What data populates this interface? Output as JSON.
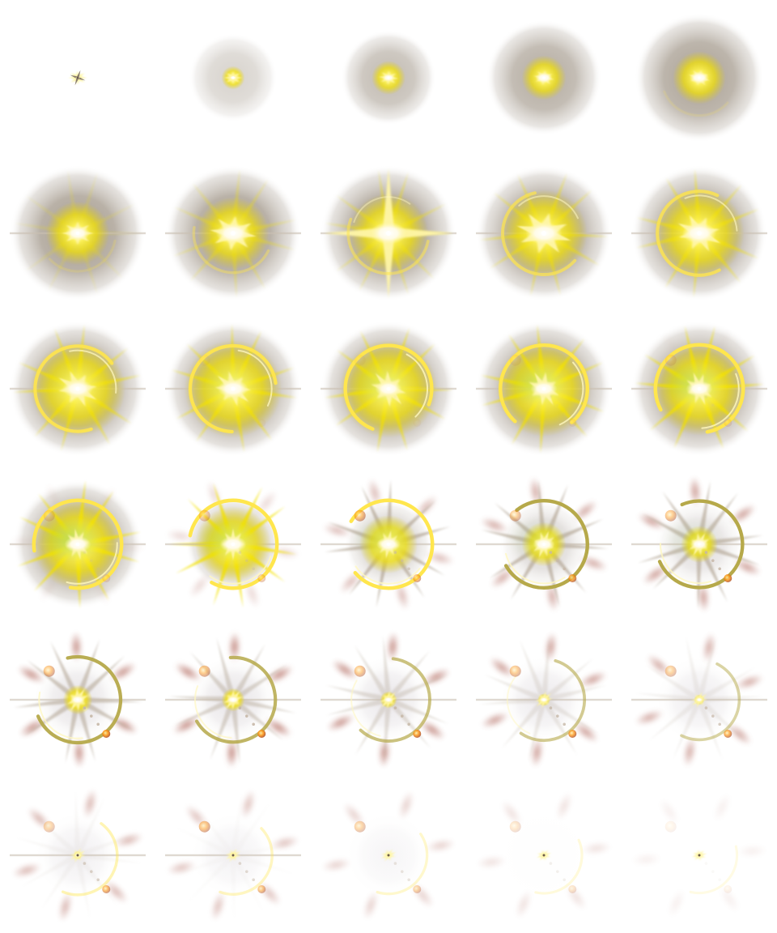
{
  "sprite_sheet": {
    "description_visible_text": "",
    "columns": 5,
    "rows": 6,
    "frame_count": 30,
    "colors": {
      "background": "#ffffff",
      "halo": "#8a7d6c",
      "glow": "#f4e300",
      "core": "#fffbe6",
      "ring": "#ffe64d",
      "shard": "#fff6a8",
      "green_mist": "#7fc24a",
      "red_smoke": "#a8564a",
      "ember": "#ff9a1a",
      "pale_white": "#f3f1f4"
    },
    "frames": [
      {
        "halo": 0.0,
        "glow": 0.05,
        "core": 0.04,
        "star": 0.08,
        "ring": 0.0,
        "rays": 0.0,
        "smoke": 0.0,
        "green": 0.0,
        "ember": 0.0,
        "rot": 0
      },
      {
        "halo": 0.45,
        "glow": 0.22,
        "core": 0.06,
        "star": 0.08,
        "ring": 0.0,
        "rays": 0.0,
        "smoke": 0.0,
        "green": 0.0,
        "ember": 0.0,
        "rot": 0
      },
      {
        "halo": 0.7,
        "glow": 0.32,
        "core": 0.1,
        "star": 0.1,
        "ring": 0.0,
        "rays": 0.0,
        "smoke": 0.0,
        "green": 0.0,
        "ember": 0.0,
        "rot": 10
      },
      {
        "halo": 0.85,
        "glow": 0.42,
        "core": 0.14,
        "star": 0.12,
        "ring": 0.0,
        "rays": 0.0,
        "smoke": 0.0,
        "green": 0.0,
        "ember": 0.0,
        "rot": 20
      },
      {
        "halo": 0.95,
        "glow": 0.5,
        "core": 0.16,
        "star": 0.14,
        "ring": 0.05,
        "rays": 0.0,
        "smoke": 0.0,
        "green": 0.0,
        "ember": 0.0,
        "rot": 30
      },
      {
        "halo": 1.0,
        "glow": 0.6,
        "core": 0.2,
        "star": 0.3,
        "ring": 0.1,
        "rays": 0.2,
        "smoke": 0.0,
        "green": 0.0,
        "ember": 0.0,
        "rot": 0
      },
      {
        "halo": 1.0,
        "glow": 0.68,
        "core": 0.28,
        "star": 0.55,
        "ring": 0.3,
        "rays": 0.4,
        "smoke": 0.0,
        "green": 0.0,
        "ember": 0.0,
        "rot": 15
      },
      {
        "halo": 1.0,
        "glow": 0.75,
        "core": 0.3,
        "star": 1.0,
        "ring": 0.45,
        "rays": 0.5,
        "smoke": 0.0,
        "green": 0.0,
        "ember": 0.0,
        "rot": 0
      },
      {
        "halo": 1.0,
        "glow": 0.82,
        "core": 0.3,
        "star": 0.7,
        "ring": 0.6,
        "rays": 0.6,
        "smoke": 0.0,
        "green": 0.0,
        "ember": 0.0,
        "rot": 30
      },
      {
        "halo": 1.0,
        "glow": 0.85,
        "core": 0.28,
        "star": 0.55,
        "ring": 0.7,
        "rays": 0.7,
        "smoke": 0.0,
        "green": 0.0,
        "ember": 0.0,
        "rot": 50
      },
      {
        "halo": 1.0,
        "glow": 0.9,
        "core": 0.25,
        "star": 0.5,
        "ring": 0.8,
        "rays": 0.8,
        "smoke": 0.0,
        "green": 0.1,
        "ember": 0.0,
        "rot": 60
      },
      {
        "halo": 1.0,
        "glow": 0.92,
        "core": 0.25,
        "star": 0.45,
        "ring": 0.85,
        "rays": 0.85,
        "smoke": 0.0,
        "green": 0.2,
        "ember": 0.05,
        "rot": 80
      },
      {
        "halo": 1.0,
        "glow": 0.92,
        "core": 0.22,
        "star": 0.45,
        "ring": 0.9,
        "rays": 0.9,
        "smoke": 0.0,
        "green": 0.3,
        "ember": 0.05,
        "rot": 100
      },
      {
        "halo": 1.0,
        "glow": 0.9,
        "core": 0.22,
        "star": 0.4,
        "ring": 0.95,
        "rays": 0.95,
        "smoke": 0.0,
        "green": 0.45,
        "ember": 0.1,
        "rot": 120
      },
      {
        "halo": 1.0,
        "glow": 0.88,
        "core": 0.22,
        "star": 0.35,
        "ring": 1.0,
        "rays": 1.0,
        "smoke": 0.05,
        "green": 0.5,
        "ember": 0.15,
        "rot": 140
      },
      {
        "halo": 0.95,
        "glow": 0.85,
        "core": 0.22,
        "star": 0.3,
        "ring": 1.0,
        "rays": 1.0,
        "smoke": 0.15,
        "green": 0.6,
        "ember": 0.2,
        "rot": 160
      },
      {
        "halo": 0.7,
        "glow": 0.72,
        "core": 0.22,
        "star": 0.3,
        "ring": 1.0,
        "rays": 1.0,
        "smoke": 0.35,
        "green": 0.4,
        "ember": 0.35,
        "rot": 180
      },
      {
        "halo": 0.45,
        "glow": 0.55,
        "core": 0.2,
        "star": 0.25,
        "ring": 1.0,
        "rays": 1.0,
        "smoke": 0.6,
        "green": 0.25,
        "ember": 0.55,
        "rot": 200
      },
      {
        "halo": 0.3,
        "glow": 0.42,
        "core": 0.18,
        "star": 0.25,
        "ring": 0.95,
        "rays": 0.95,
        "smoke": 0.75,
        "green": 0.2,
        "ember": 0.75,
        "rot": 220
      },
      {
        "halo": 0.2,
        "glow": 0.35,
        "core": 0.15,
        "star": 0.2,
        "ring": 0.9,
        "rays": 0.9,
        "smoke": 0.85,
        "green": 0.15,
        "ember": 0.85,
        "rot": 235
      },
      {
        "halo": 0.1,
        "glow": 0.28,
        "core": 0.12,
        "star": 0.2,
        "ring": 0.85,
        "rays": 0.8,
        "smoke": 0.95,
        "green": 0.0,
        "ember": 0.9,
        "rot": 245
      },
      {
        "halo": 0.08,
        "glow": 0.22,
        "core": 0.1,
        "star": 0.15,
        "ring": 0.75,
        "rays": 0.6,
        "smoke": 1.0,
        "green": 0.0,
        "ember": 0.9,
        "rot": 255
      },
      {
        "halo": 0.06,
        "glow": 0.16,
        "core": 0.08,
        "star": 0.12,
        "ring": 0.6,
        "rays": 0.45,
        "smoke": 0.95,
        "green": 0.0,
        "ember": 0.85,
        "rot": 265
      },
      {
        "halo": 0.05,
        "glow": 0.12,
        "core": 0.07,
        "star": 0.1,
        "ring": 0.5,
        "rays": 0.3,
        "smoke": 0.85,
        "green": 0.0,
        "ember": 0.8,
        "rot": 275
      },
      {
        "halo": 0.04,
        "glow": 0.1,
        "core": 0.06,
        "star": 0.08,
        "ring": 0.4,
        "rays": 0.2,
        "smoke": 0.75,
        "green": 0.0,
        "ember": 0.7,
        "rot": 285
      },
      {
        "halo": 0.03,
        "glow": 0.08,
        "core": 0.05,
        "star": 0.06,
        "ring": 0.32,
        "rays": 0.1,
        "smoke": 0.65,
        "green": 0.0,
        "ember": 0.6,
        "rot": 295
      },
      {
        "halo": 0.02,
        "glow": 0.06,
        "core": 0.04,
        "star": 0.05,
        "ring": 0.25,
        "rays": 0.05,
        "smoke": 0.55,
        "green": 0.0,
        "ember": 0.5,
        "rot": 305
      },
      {
        "halo": 0.02,
        "glow": 0.04,
        "core": 0.03,
        "star": 0.04,
        "ring": 0.18,
        "rays": 0.0,
        "smoke": 0.42,
        "green": 0.0,
        "ember": 0.35,
        "rot": 315
      },
      {
        "halo": 0.01,
        "glow": 0.02,
        "core": 0.02,
        "star": 0.02,
        "ring": 0.1,
        "rays": 0.0,
        "smoke": 0.28,
        "green": 0.0,
        "ember": 0.2,
        "rot": 325
      },
      {
        "halo": 0.0,
        "glow": 0.01,
        "core": 0.01,
        "star": 0.01,
        "ring": 0.05,
        "rays": 0.0,
        "smoke": 0.15,
        "green": 0.0,
        "ember": 0.08,
        "rot": 335
      }
    ]
  }
}
